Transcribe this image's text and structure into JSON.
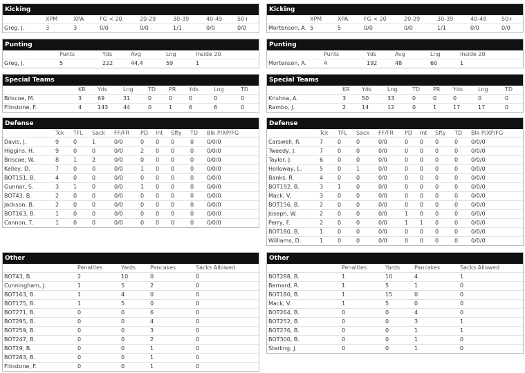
{
  "left": [
    {
      "title": "Kicking",
      "columns": [
        "XPM",
        "XPA",
        "FG < 20",
        "20-29",
        "30-39",
        "40-49",
        "50+"
      ],
      "rows": [
        [
          "Greg, J.",
          "3",
          "3",
          "0/0",
          "0/0",
          "1/1",
          "0/0",
          "0/0"
        ]
      ]
    },
    {
      "title": "Punting",
      "columns": [
        "Punts",
        "Yds",
        "Avg",
        "Lng",
        "Inside 20"
      ],
      "rows": [
        [
          "Greg, J.",
          "5",
          "222",
          "44.4",
          "59",
          "1"
        ]
      ]
    },
    {
      "title": "Special Teams",
      "columns": [
        "KR",
        "Yds",
        "Lng",
        "TD",
        "PR",
        "Yds",
        "Lng",
        "TD"
      ],
      "rows": [
        [
          "Briscoe, M.",
          "3",
          "69",
          "31",
          "0",
          "0",
          "0",
          "0",
          "0"
        ],
        [
          "Flinstone, F.",
          "4",
          "143",
          "44",
          "0",
          "1",
          "6",
          "6",
          "0"
        ]
      ]
    },
    {
      "title": "Defense",
      "columns": [
        "Tck",
        "TFL",
        "Sack",
        "FF/FR",
        "PD",
        "Int",
        "Sfty",
        "TD",
        "Blk P/XP/FG"
      ],
      "rows": [
        [
          "Davis, J.",
          "9",
          "0",
          "1",
          "0/0",
          "0",
          "0",
          "0",
          "0",
          "0/0/0"
        ],
        [
          "Higgins, H.",
          "9",
          "0",
          "0",
          "0/0",
          "2",
          "0",
          "0",
          "0",
          "0/0/0"
        ],
        [
          "Briscoe, W.",
          "8",
          "1",
          "2",
          "0/0",
          "0",
          "0",
          "0",
          "0",
          "0/0/0"
        ],
        [
          "Kelley, D.",
          "7",
          "0",
          "0",
          "0/0",
          "1",
          "0",
          "0",
          "0",
          "0/0/0"
        ],
        [
          "BOT151, B.",
          "4",
          "0",
          "0",
          "0/0",
          "0",
          "0",
          "0",
          "0",
          "0/0/0"
        ],
        [
          "Gunnar, S.",
          "3",
          "1",
          "0",
          "0/0",
          "1",
          "0",
          "0",
          "0",
          "0/0/0"
        ],
        [
          "BOT43, B.",
          "2",
          "0",
          "0",
          "0/0",
          "0",
          "0",
          "0",
          "0",
          "0/0/0"
        ],
        [
          "Jackson, B.",
          "2",
          "0",
          "0",
          "0/0",
          "0",
          "0",
          "0",
          "0",
          "0/0/0"
        ],
        [
          "BOT163, B.",
          "1",
          "0",
          "0",
          "0/0",
          "0",
          "0",
          "0",
          "0",
          "0/0/0"
        ],
        [
          "Cannon, T.",
          "1",
          "0",
          "0",
          "0/0",
          "0",
          "0",
          "0",
          "0",
          "0/0/0"
        ]
      ]
    },
    {
      "title": "Other",
      "columns": [
        "Penalties",
        "Yards",
        "Pancakes",
        "Sacks Allowed"
      ],
      "rows": [
        [
          "BOT43, B.",
          "2",
          "10",
          "0",
          "0"
        ],
        [
          "Cunningham, J.",
          "1",
          "5",
          "2",
          "0"
        ],
        [
          "BOT163, B.",
          "1",
          "4",
          "0",
          "0"
        ],
        [
          "BOT175, B.",
          "1",
          "5",
          "0",
          "0"
        ],
        [
          "BOT271, B.",
          "0",
          "0",
          "6",
          "0"
        ],
        [
          "BOT295, B.",
          "0",
          "0",
          "4",
          "0"
        ],
        [
          "BOT259, B.",
          "0",
          "0",
          "3",
          "0"
        ],
        [
          "BOT247, B.",
          "0",
          "0",
          "2",
          "0"
        ],
        [
          "BOT19, B.",
          "0",
          "0",
          "1",
          "0"
        ],
        [
          "BOT283, B.",
          "0",
          "0",
          "1",
          "0"
        ],
        [
          "Flinstone, F.",
          "0",
          "0",
          "1",
          "0"
        ]
      ]
    }
  ],
  "right": [
    {
      "title": "Kicking",
      "columns": [
        "XPM",
        "XPA",
        "FG < 20",
        "20-29",
        "30-39",
        "40-49",
        "50+"
      ],
      "rows": [
        [
          "Mortenson, A.",
          "5",
          "5",
          "0/0",
          "0/0",
          "1/1",
          "0/0",
          "0/0"
        ]
      ]
    },
    {
      "title": "Punting",
      "columns": [
        "Punts",
        "Yds",
        "Avg",
        "Lng",
        "Inside 20"
      ],
      "rows": [
        [
          "Mortenson, A.",
          "4",
          "192",
          "48",
          "60",
          "1"
        ]
      ]
    },
    {
      "title": "Special Teams",
      "columns": [
        "KR",
        "Yds",
        "Lng",
        "TD",
        "PR",
        "Yds",
        "Lng",
        "TD"
      ],
      "rows": [
        [
          "Krishna, A.",
          "3",
          "50",
          "33",
          "0",
          "0",
          "0",
          "0",
          "0"
        ],
        [
          "Rambo, J.",
          "2",
          "14",
          "12",
          "0",
          "1",
          "17",
          "17",
          "0"
        ]
      ]
    },
    {
      "title": "Defense",
      "columns": [
        "Tck",
        "TFL",
        "Sack",
        "FF/FR",
        "PD",
        "Int",
        "Sfty",
        "TD",
        "Blk P/XP/FG"
      ],
      "rows": [
        [
          "Carswell, R.",
          "7",
          "0",
          "0",
          "0/0",
          "0",
          "0",
          "0",
          "0",
          "0/0/0"
        ],
        [
          "Tweedy, J.",
          "7",
          "0",
          "0",
          "0/0",
          "0",
          "0",
          "0",
          "0",
          "0/0/0"
        ],
        [
          "Taylor, J.",
          "6",
          "0",
          "0",
          "0/0",
          "0",
          "0",
          "0",
          "0",
          "0/0/0"
        ],
        [
          "Holloway, L.",
          "5",
          "0",
          "1",
          "0/0",
          "0",
          "0",
          "0",
          "0",
          "0/0/0"
        ],
        [
          "Banks, R.",
          "4",
          "0",
          "0",
          "0/0",
          "0",
          "0",
          "0",
          "0",
          "0/0/0"
        ],
        [
          "BOT192, B.",
          "3",
          "1",
          "0",
          "0/0",
          "0",
          "0",
          "0",
          "0",
          "0/0/0"
        ],
        [
          "Mack, V.",
          "3",
          "0",
          "0",
          "0/0",
          "0",
          "0",
          "0",
          "0",
          "0/0/0"
        ],
        [
          "BOT156, B.",
          "2",
          "0",
          "0",
          "0/0",
          "0",
          "0",
          "0",
          "0",
          "0/0/0"
        ],
        [
          "Joseph, W.",
          "2",
          "0",
          "0",
          "0/0",
          "1",
          "0",
          "0",
          "0",
          "0/0/0"
        ],
        [
          "Perry, F.",
          "2",
          "0",
          "0",
          "0/0",
          "1",
          "1",
          "0",
          "0",
          "0/0/0"
        ],
        [
          "BOT180, B.",
          "1",
          "0",
          "0",
          "0/0",
          "0",
          "0",
          "0",
          "0",
          "0/0/0"
        ],
        [
          "Williams, D.",
          "1",
          "0",
          "0",
          "0/0",
          "0",
          "0",
          "0",
          "0",
          "0/0/0"
        ]
      ]
    },
    {
      "title": "Other",
      "columns": [
        "Penalties",
        "Yards",
        "Pancakes",
        "Sacks Allowed"
      ],
      "rows": [
        [
          "BOT288, B.",
          "1",
          "10",
          "4",
          "1"
        ],
        [
          "Bernard, R.",
          "1",
          "5",
          "1",
          "0"
        ],
        [
          "BOT180, B.",
          "1",
          "15",
          "0",
          "0"
        ],
        [
          "Mack, V.",
          "1",
          "5",
          "0",
          "0"
        ],
        [
          "BOT264, B.",
          "0",
          "0",
          "4",
          "0"
        ],
        [
          "BOT252, B.",
          "0",
          "0",
          "3",
          "1"
        ],
        [
          "BOT276, B.",
          "0",
          "0",
          "1",
          "1"
        ],
        [
          "BOT300, B.",
          "0",
          "0",
          "1",
          "0"
        ],
        [
          "Sterling, J.",
          "0",
          "0",
          "1",
          "0"
        ]
      ]
    }
  ]
}
